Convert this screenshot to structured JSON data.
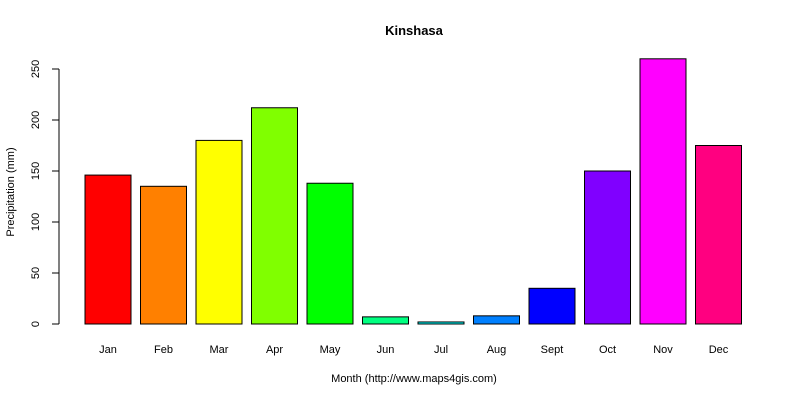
{
  "chart_data": {
    "type": "bar",
    "title": "Kinshasa",
    "xlabel": "Month (http://www.maps4gis.com)",
    "ylabel": "Precipitation (mm)",
    "categories": [
      "Jan",
      "Feb",
      "Mar",
      "Apr",
      "May",
      "Jun",
      "Jul",
      "Aug",
      "Sept",
      "Oct",
      "Nov",
      "Dec"
    ],
    "values": [
      146,
      135,
      180,
      212,
      138,
      7,
      2,
      8,
      35,
      150,
      260,
      175
    ],
    "colors": [
      "#ff0000",
      "#ff8000",
      "#ffff00",
      "#80ff00",
      "#00ff00",
      "#00ff80",
      "#00ffff",
      "#0080ff",
      "#0000ff",
      "#8000ff",
      "#ff00ff",
      "#ff0080"
    ],
    "yticks": [
      0,
      50,
      100,
      150,
      200,
      250
    ],
    "ylim": [
      0,
      260
    ],
    "grid": false,
    "legend": "none"
  }
}
